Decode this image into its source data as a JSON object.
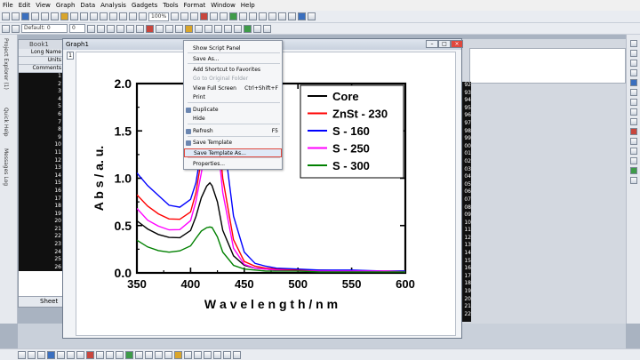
{
  "menubar": [
    "File",
    "Edit",
    "View",
    "Graph",
    "Data",
    "Analysis",
    "Gadgets",
    "Tools",
    "Format",
    "Window",
    "Help"
  ],
  "toolbar": {
    "zoom": "100%",
    "font": "Default: 0",
    "size": "0"
  },
  "side_panels": [
    "Project Explorer (1)",
    "Quick Help",
    "Messages Log"
  ],
  "book": {
    "title": "Book1",
    "headers": [
      "Long Name",
      "Units",
      "Comments"
    ],
    "row_numbers": [
      "1",
      "2",
      "3",
      "4",
      "5",
      "6",
      "7",
      "8",
      "9",
      "10",
      "11",
      "12",
      "13",
      "14",
      "15",
      "16",
      "17",
      "18",
      "19",
      "20",
      "21",
      "22",
      "23",
      "24",
      "25",
      "26"
    ],
    "sheet_tab": "Sheet"
  },
  "bg_rows": [
    "92",
    "93",
    "94",
    "95",
    "96",
    "97",
    "98",
    "99",
    "00",
    "01",
    "02",
    "03",
    "04",
    "05",
    "06",
    "07",
    "08",
    "09",
    "10",
    "11",
    "12",
    "13",
    "14",
    "15",
    "16",
    "17",
    "18",
    "19",
    "20",
    "21",
    "22"
  ],
  "graph": {
    "title": "Graph1",
    "layer": "1"
  },
  "context_menu": [
    {
      "label": "Show Script Panel",
      "shortcut": "",
      "disabled": false,
      "highlight": false,
      "icon": false
    },
    {
      "label": "Save As...",
      "shortcut": "",
      "disabled": false,
      "highlight": false,
      "icon": false
    },
    {
      "label": "Add Shortcut to Favorites",
      "shortcut": "",
      "disabled": false,
      "highlight": false,
      "icon": false
    },
    {
      "label": "Go to Original Folder",
      "shortcut": "",
      "disabled": true,
      "highlight": false,
      "icon": false
    },
    {
      "label": "View Full Screen",
      "shortcut": "Ctrl+Shift+F",
      "disabled": false,
      "highlight": false,
      "icon": false
    },
    {
      "label": "Print",
      "shortcut": "",
      "disabled": false,
      "highlight": false,
      "icon": false
    },
    {
      "label": "Duplicate",
      "shortcut": "",
      "disabled": false,
      "highlight": false,
      "icon": true
    },
    {
      "label": "Hide",
      "shortcut": "",
      "disabled": false,
      "highlight": false,
      "icon": false
    },
    {
      "label": "Refresh",
      "shortcut": "F5",
      "disabled": false,
      "highlight": false,
      "icon": true
    },
    {
      "label": "Save Template",
      "shortcut": "",
      "disabled": false,
      "highlight": false,
      "icon": true
    },
    {
      "label": "Save Template As...",
      "shortcut": "",
      "disabled": false,
      "highlight": true,
      "icon": false
    },
    {
      "label": "Properties...",
      "shortcut": "",
      "disabled": false,
      "highlight": false,
      "icon": false
    }
  ],
  "chart_data": {
    "type": "line",
    "xlabel": "W a v e l e n g t h / n m",
    "ylabel": "A b s / a. u.",
    "xlim": [
      350,
      600
    ],
    "ylim": [
      0.0,
      2.0
    ],
    "xticks": [
      "350",
      "400",
      "450",
      "500",
      "550",
      "600"
    ],
    "yticks": [
      "0.0",
      "0.5",
      "1.0",
      "1.5",
      "2.0"
    ],
    "legend_position": "top-right",
    "x": [
      350,
      360,
      370,
      380,
      390,
      400,
      405,
      410,
      415,
      418,
      420,
      425,
      430,
      440,
      450,
      460,
      470,
      480,
      500,
      520,
      550,
      580,
      600
    ],
    "series": [
      {
        "name": "Core",
        "color": "#000000",
        "values": [
          0.55,
          0.46,
          0.4,
          0.37,
          0.37,
          0.45,
          0.6,
          0.8,
          0.92,
          0.95,
          0.92,
          0.75,
          0.45,
          0.18,
          0.08,
          0.05,
          0.04,
          0.03,
          0.02,
          0.02,
          0.02,
          0.01,
          0.01
        ]
      },
      {
        "name": "ZnSt - 230",
        "color": "#ff0000",
        "values": [
          0.82,
          0.7,
          0.62,
          0.57,
          0.57,
          0.65,
          0.85,
          1.2,
          1.6,
          1.8,
          1.85,
          1.6,
          1.0,
          0.35,
          0.12,
          0.07,
          0.05,
          0.04,
          0.03,
          0.03,
          0.02,
          0.02,
          0.02
        ]
      },
      {
        "name": "S - 160",
        "color": "#0000ff",
        "values": [
          1.05,
          0.92,
          0.82,
          0.72,
          0.7,
          0.78,
          0.95,
          1.3,
          1.7,
          1.95,
          2.0,
          1.9,
          1.5,
          0.6,
          0.22,
          0.1,
          0.07,
          0.05,
          0.04,
          0.03,
          0.03,
          0.02,
          0.02
        ]
      },
      {
        "name": "S - 250",
        "color": "#ff00ff",
        "values": [
          0.68,
          0.56,
          0.5,
          0.46,
          0.46,
          0.55,
          0.75,
          1.05,
          1.4,
          1.6,
          1.65,
          1.4,
          0.85,
          0.26,
          0.09,
          0.05,
          0.04,
          0.03,
          0.02,
          0.02,
          0.02,
          0.02,
          0.01
        ]
      },
      {
        "name": "S - 300",
        "color": "#008000",
        "values": [
          0.35,
          0.28,
          0.24,
          0.22,
          0.23,
          0.28,
          0.36,
          0.44,
          0.48,
          0.49,
          0.48,
          0.38,
          0.22,
          0.08,
          0.04,
          0.03,
          0.02,
          0.02,
          0.02,
          0.01,
          0.01,
          0.01,
          0.01
        ]
      }
    ]
  }
}
